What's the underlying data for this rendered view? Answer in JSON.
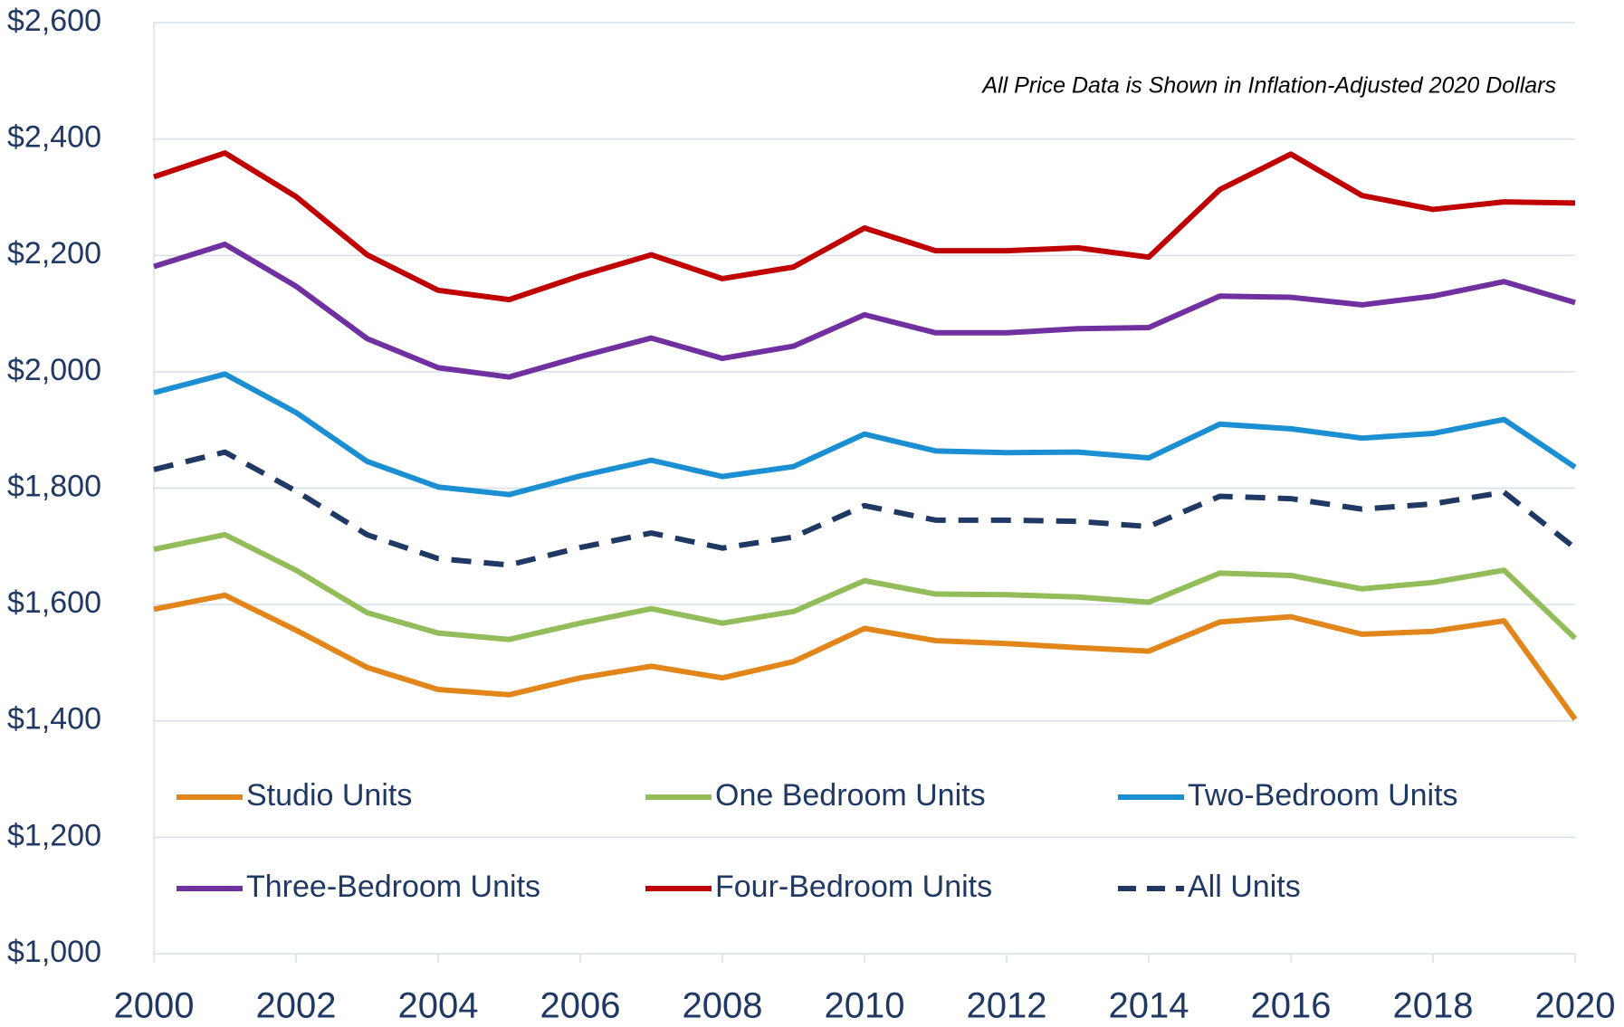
{
  "chart_data": {
    "type": "line",
    "annotation": "All Price Data is Shown in Inflation-Adjusted 2020 Dollars",
    "x": [
      2000,
      2001,
      2002,
      2003,
      2004,
      2005,
      2006,
      2007,
      2008,
      2009,
      2010,
      2011,
      2012,
      2013,
      2014,
      2015,
      2016,
      2017,
      2018,
      2019,
      2020
    ],
    "series": [
      {
        "name": "Studio Units",
        "color": "#e2861b",
        "values": [
          1592,
          1616,
          1556,
          1492,
          1454,
          1445,
          1474,
          1494,
          1474,
          1502,
          1559,
          1538,
          1533,
          1526,
          1520,
          1570,
          1579,
          1549,
          1554,
          1572,
          1403
        ]
      },
      {
        "name": "One Bedroom Units",
        "color": "#92bd5a",
        "values": [
          1695,
          1720,
          1659,
          1586,
          1551,
          1540,
          1568,
          1593,
          1568,
          1588,
          1641,
          1618,
          1617,
          1613,
          1604,
          1654,
          1650,
          1627,
          1638,
          1659,
          1542
        ]
      },
      {
        "name": "Two-Bedroom Units",
        "color": "#1b8fd2",
        "values": [
          1964,
          1996,
          1930,
          1846,
          1802,
          1789,
          1821,
          1848,
          1820,
          1837,
          1893,
          1864,
          1861,
          1862,
          1852,
          1910,
          1902,
          1886,
          1894,
          1918,
          1836
        ]
      },
      {
        "name": "Three-Bedroom Units",
        "color": "#7030a0",
        "values": [
          2181,
          2219,
          2147,
          2057,
          2007,
          1991,
          2026,
          2058,
          2023,
          2044,
          2098,
          2067,
          2067,
          2074,
          2076,
          2130,
          2128,
          2115,
          2130,
          2155,
          2119
        ]
      },
      {
        "name": "Four-Bedroom Units",
        "color": "#c00000",
        "values": [
          2335,
          2376,
          2301,
          2201,
          2140,
          2124,
          2165,
          2201,
          2160,
          2180,
          2247,
          2208,
          2208,
          2213,
          2197,
          2313,
          2374,
          2303,
          2279,
          2292,
          2290
        ]
      },
      {
        "name": "All Units",
        "color": "#1f3864",
        "dashed": true,
        "values": [
          1832,
          1862,
          1795,
          1720,
          1679,
          1668,
          1698,
          1723,
          1697,
          1716,
          1770,
          1745,
          1745,
          1743,
          1734,
          1786,
          1782,
          1764,
          1773,
          1793,
          1697
        ]
      }
    ],
    "xlim": [
      2000,
      2020
    ],
    "xticks": [
      2000,
      2002,
      2004,
      2006,
      2008,
      2010,
      2012,
      2014,
      2016,
      2018,
      2020
    ],
    "ylim": [
      1000,
      2600
    ],
    "yticks": [
      {
        "value": 1000,
        "label": "$1,000"
      },
      {
        "value": 1200,
        "label": "$1,200"
      },
      {
        "value": 1400,
        "label": "$1,400"
      },
      {
        "value": 1600,
        "label": "$1,600"
      },
      {
        "value": 1800,
        "label": "$1,800"
      },
      {
        "value": 2000,
        "label": "$2,000"
      },
      {
        "value": 2200,
        "label": "$2,200"
      },
      {
        "value": 2400,
        "label": "$2,400"
      },
      {
        "value": 2600,
        "label": "$2,600"
      }
    ],
    "grid": true,
    "legend": "lower"
  }
}
